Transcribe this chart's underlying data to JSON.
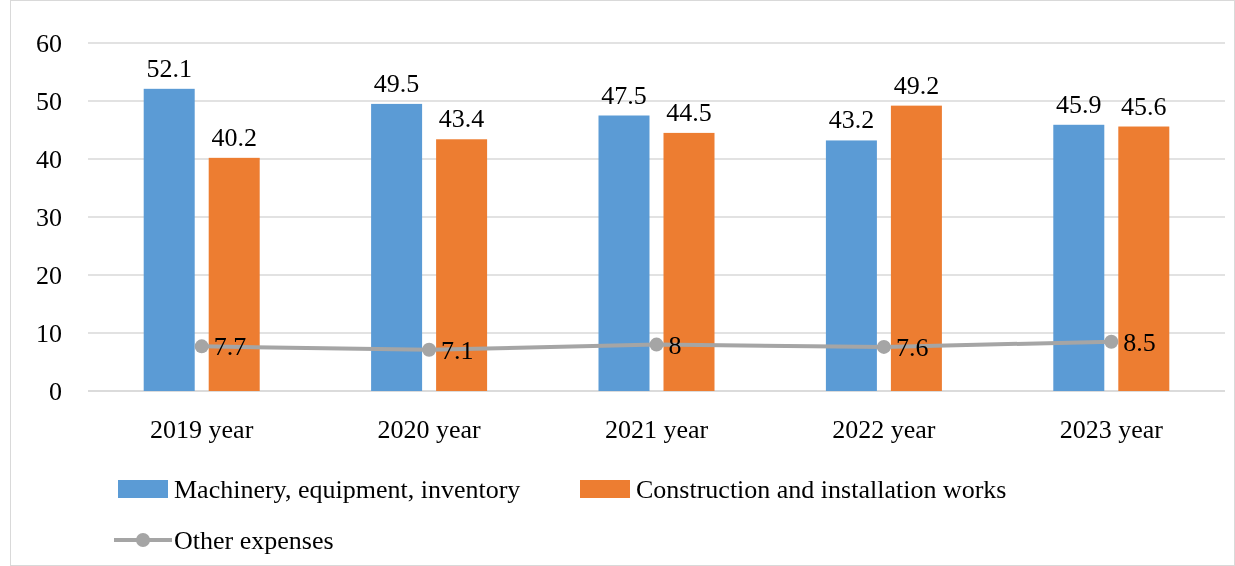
{
  "chart_data": {
    "type": "bar",
    "categories": [
      "2019 year",
      "2020 year",
      "2021 year",
      "2022 year",
      "2023 year"
    ],
    "series": [
      {
        "name": "Machinery, equipment, inventory",
        "color": "#5b9bd5",
        "values": [
          52.1,
          49.5,
          47.5,
          43.2,
          45.9
        ]
      },
      {
        "name": "Construction and installation works",
        "color": "#ed7d31",
        "values": [
          40.2,
          43.4,
          44.5,
          49.2,
          45.6
        ]
      },
      {
        "name": "Other expenses",
        "type": "line",
        "color": "#a5a5a5",
        "marker": "circle",
        "values": [
          7.7,
          7.1,
          8,
          7.6,
          8.5
        ]
      }
    ],
    "ylim": [
      0,
      60
    ],
    "yticks": [
      0,
      10,
      20,
      30,
      40,
      50,
      60
    ],
    "grid": "y",
    "legend": "bottom",
    "data_labels": true
  }
}
